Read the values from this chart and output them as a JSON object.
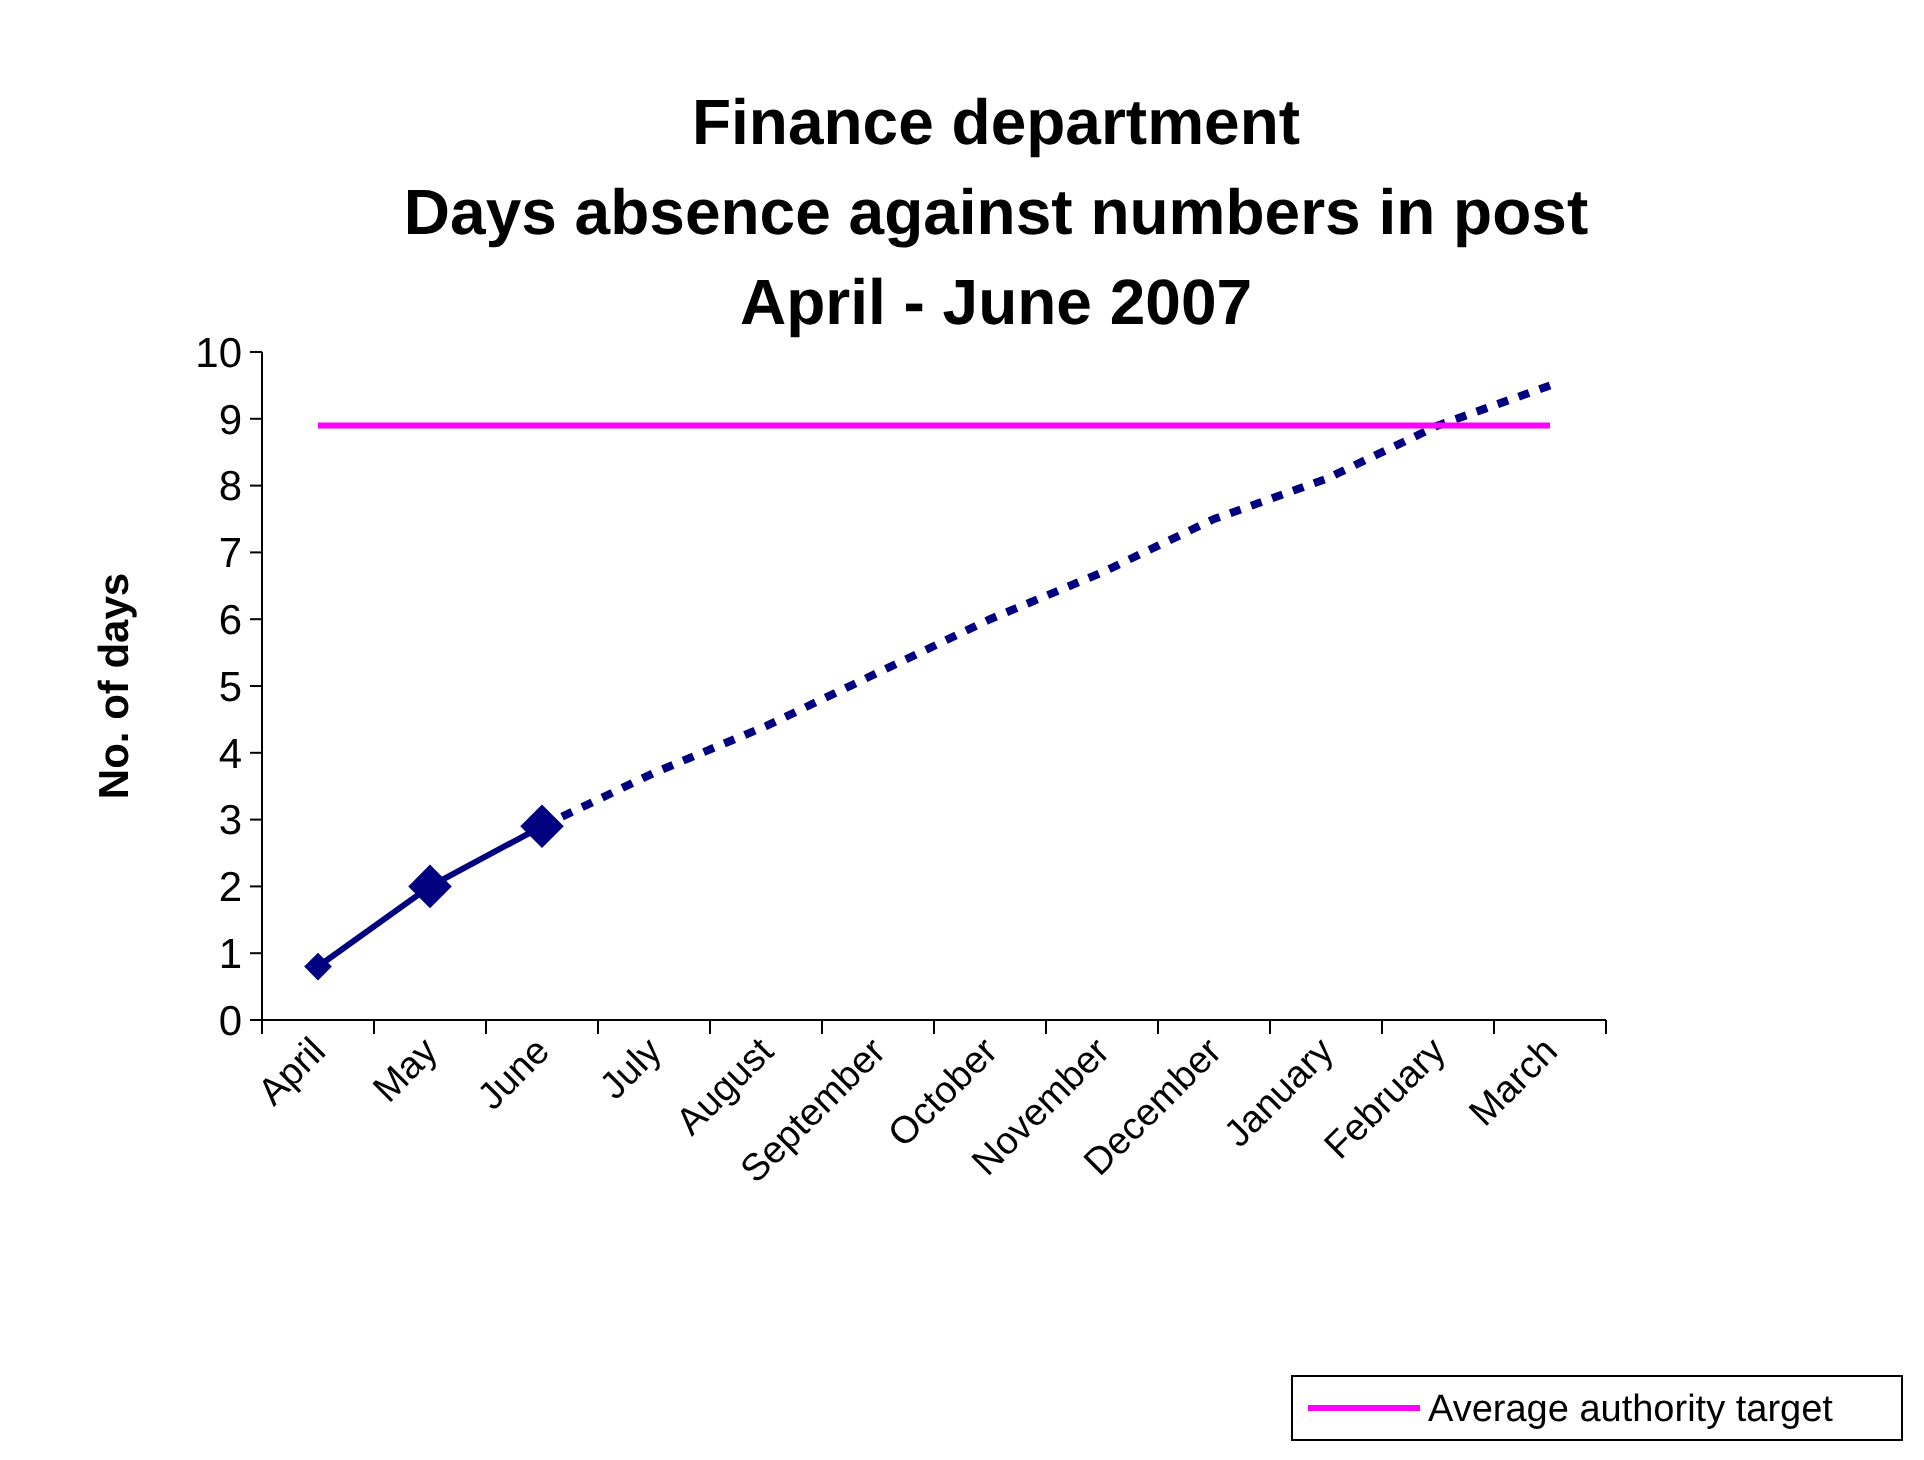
{
  "chart_data": {
    "type": "line",
    "title": "Finance department\nDays absence against numbers in post\nApril - June 2007",
    "ylabel": "No. of days",
    "categories": [
      "April",
      "May",
      "June",
      "July",
      "August",
      "September",
      "October",
      "November",
      "December",
      "January",
      "February",
      "March"
    ],
    "series": [
      {
        "color": "#000080",
        "marker": "diamond",
        "line_style": "solid",
        "values": [
          0.8,
          2.0,
          2.9,
          null,
          null,
          null,
          null,
          null,
          null,
          null,
          null,
          null
        ]
      },
      {
        "color": "#000080",
        "marker": "none",
        "line_style": "dotted",
        "values": [
          null,
          null,
          2.9,
          3.7,
          4.4,
          5.2,
          6.0,
          6.7,
          7.5,
          8.1,
          8.9,
          9.5
        ]
      },
      {
        "name": "Average authority target",
        "color": "#ff00ff",
        "marker": "none",
        "line_style": "solid",
        "values": [
          8.9,
          8.9,
          8.9,
          8.9,
          8.9,
          8.9,
          8.9,
          8.9,
          8.9,
          8.9,
          8.9,
          8.9
        ]
      }
    ],
    "ylim": [
      0,
      10
    ],
    "yticks": [
      0,
      1,
      2,
      3,
      4,
      5,
      6,
      7,
      8,
      9,
      10
    ],
    "grid": false,
    "legend": "bottom right"
  }
}
